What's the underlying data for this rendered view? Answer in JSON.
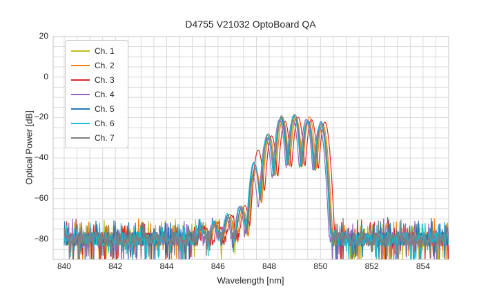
{
  "chart_data": {
    "type": "line",
    "title": "D4755 V21032 OptoBoard QA",
    "xlabel": "Wavelength [nm]",
    "ylabel": "Optical Power [dB]",
    "xlim": [
      839.57,
      855.0
    ],
    "ylim": [
      -90,
      20
    ],
    "xticks": [
      840,
      842,
      844,
      846,
      848,
      850,
      852,
      854
    ],
    "yticks": [
      20,
      0,
      -20,
      -40,
      -60,
      -80
    ],
    "yticklabels": [
      "20",
      "0",
      "−20",
      "−40",
      "−60",
      "−80"
    ],
    "grid": {
      "on": true,
      "minor_x_step_nm": 0.5,
      "minor_y_step_db": 5,
      "color": "#d9d9d9"
    },
    "legend": {
      "position": "upper-left",
      "entries": [
        {
          "label": "Ch. 1",
          "color": "#bcbd22"
        },
        {
          "label": "Ch. 2",
          "color": "#ff7f0e"
        },
        {
          "label": "Ch. 3",
          "color": "#d62728"
        },
        {
          "label": "Ch. 4",
          "color": "#9467bd"
        },
        {
          "label": "Ch. 5",
          "color": "#1f77b4"
        },
        {
          "label": "Ch. 6",
          "color": "#17becf"
        },
        {
          "label": "Ch. 7",
          "color": "#7f7f7f"
        }
      ]
    },
    "spectrum_model": {
      "description": "VCSEL multimode spectra: noise floor ~-80 dB, mode comb rising from 846.4 nm to peak ~-19 dB near 849 nm, sharp cutoff ~850.4 nm",
      "noise_floor_db": -80,
      "mode_sigma_nm": 0.105,
      "mode_peaks": [
        {
          "nm": 845.36,
          "db": -76
        },
        {
          "nm": 845.88,
          "db": -73
        },
        {
          "nm": 846.4,
          "db": -69
        },
        {
          "nm": 846.92,
          "db": -64.5
        },
        {
          "nm": 847.44,
          "db": -44
        },
        {
          "nm": 847.96,
          "db": -29.5
        },
        {
          "nm": 848.48,
          "db": -20.3
        },
        {
          "nm": 849.0,
          "db": -19.3
        },
        {
          "nm": 849.52,
          "db": -20.5
        },
        {
          "nm": 850.04,
          "db": -22.5
        }
      ]
    },
    "series": [
      {
        "name": "Ch. 1",
        "color": "#bcbd22",
        "offset_nm": 0.02,
        "peak_adjust_db": [
          0,
          0,
          -0.5,
          0.5,
          -1.5,
          -0.5,
          0.8,
          -0.6,
          -1.2,
          -1.5
        ]
      },
      {
        "name": "Ch. 2",
        "color": "#ff7f0e",
        "offset_nm": 0.05,
        "peak_adjust_db": [
          0,
          0,
          1.0,
          -1.0,
          -2.5,
          0.5,
          -0.5,
          -1.0,
          0.9,
          -0.8
        ]
      },
      {
        "name": "Ch. 3",
        "color": "#d62728",
        "offset_nm": 0.13,
        "peak_adjust_db": [
          0,
          0,
          0.5,
          1.0,
          8.0,
          0.5,
          -1.5,
          -0.5,
          -0.5,
          0.3
        ]
      },
      {
        "name": "Ch. 4",
        "color": "#9467bd",
        "offset_nm": -0.08,
        "peak_adjust_db": [
          0,
          0,
          -1.0,
          0.5,
          -5.0,
          -1.5,
          -0.7,
          -1.8,
          -0.4,
          -2.0
        ]
      },
      {
        "name": "Ch. 5",
        "color": "#1f77b4",
        "offset_nm": -0.02,
        "peak_adjust_db": [
          0,
          0,
          0.5,
          -0.5,
          1.5,
          -0.5,
          0.3,
          -0.3,
          -1.5,
          0.5
        ]
      },
      {
        "name": "Ch. 6",
        "color": "#17becf",
        "offset_nm": -0.04,
        "peak_adjust_db": [
          0,
          0,
          1.5,
          0.8,
          2.0,
          1.0,
          -0.2,
          0.5,
          -0.8,
          -0.2
        ]
      },
      {
        "name": "Ch. 7",
        "color": "#7f7f7f",
        "offset_nm": 0.0,
        "peak_adjust_db": [
          0,
          0,
          -0.8,
          -0.3,
          -1.0,
          1.5,
          1.2,
          0.9,
          -1.0,
          -0.5
        ]
      }
    ]
  }
}
